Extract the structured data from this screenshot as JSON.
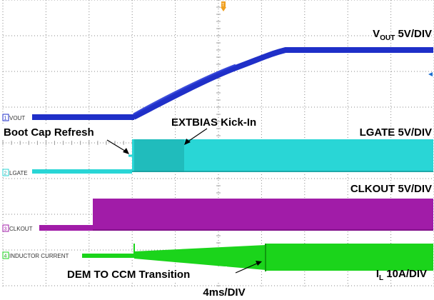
{
  "chart_data": {
    "type": "line",
    "title": "",
    "time_scale": "4ms/DIV",
    "grid": true,
    "grid_divisions": {
      "x": 10,
      "y": 8
    },
    "channels": [
      {
        "id": "1",
        "tag": "VOUT",
        "name_main": "V",
        "name_sub": "OUT",
        "scale": "5V/DIV",
        "color": "#1f2fc8",
        "description": "soft-start ramp",
        "x": [
          0,
          3.5,
          5.3,
          6.4,
          10
        ],
        "y": [
          0.2,
          0.2,
          1.5,
          1.95,
          1.95
        ],
        "units": {
          "x": "div",
          "y": "div"
        }
      },
      {
        "id": "2",
        "tag": "LGATE",
        "scale": "LGATE 5V/DIV",
        "color": "#29d6d6",
        "description": "switching starts at boot cap refresh"
      },
      {
        "id": "3",
        "tag": "CLKOUT",
        "scale": "CLKOUT 5V/DIV",
        "color": "#a11ca8",
        "description": "clock running"
      },
      {
        "id": "4",
        "tag": "INDUCTOR CURRENT",
        "name_main": "I",
        "name_sub": "L",
        "scale": "10A/DIV",
        "color": "#1bd41b",
        "description": "DEM then CCM"
      }
    ],
    "annotations": [
      "Boot Cap Refresh",
      "EXTBIAS Kick-In",
      "DEM TO CCM Transition"
    ]
  },
  "colors": {
    "grid": "#8a8a8a",
    "trigger": "#f0a020",
    "cursor": "#1f6fd0"
  }
}
